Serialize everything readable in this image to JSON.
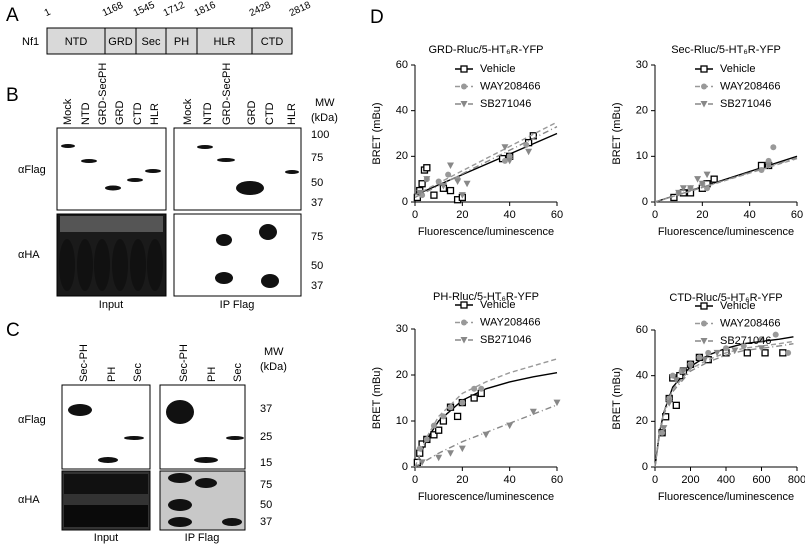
{
  "figure": {
    "panel_a": {
      "label": "A",
      "protein": "Nf1",
      "domains": [
        "NTD",
        "GRD",
        "Sec",
        "PH",
        "HLR",
        "CTD"
      ],
      "positions": [
        "1",
        "1168",
        "1545",
        "1712",
        "1816",
        "2428",
        "2818"
      ]
    },
    "panel_b": {
      "label": "B",
      "lanes": [
        "Mock",
        "NTD",
        "GRD-SecPH",
        "GRD",
        "CTD",
        "HLR"
      ],
      "mw_title": "MW",
      "mw_unit": "(kDa)",
      "rows": [
        "αFlag",
        "αHA"
      ],
      "flag_markers": [
        "100",
        "75",
        "50",
        "37"
      ],
      "ha_markers": [
        "75",
        "50",
        "37"
      ],
      "groups": [
        "Input",
        "IP Flag"
      ]
    },
    "panel_c": {
      "label": "C",
      "lanes": [
        "Sec-PH",
        "PH",
        "Sec"
      ],
      "mw_title": "MW",
      "mw_unit": "(kDa)",
      "rows": [
        "αFlag",
        "αHA"
      ],
      "flag_markers": [
        "37",
        "25",
        "15"
      ],
      "ha_markers": [
        "75",
        "50",
        "37"
      ],
      "groups": [
        "Input",
        "IP Flag"
      ]
    },
    "panel_d": {
      "label": "D"
    }
  },
  "chart_data": [
    {
      "type": "scatter",
      "title": "GRD-Rluc/5-HT₆R-YFP",
      "xlabel": "Fluorescence/luminescence",
      "ylabel": "BRET (mBu)",
      "xlim": [
        0,
        60
      ],
      "xticks": [
        0,
        20,
        40,
        60
      ],
      "ylim": [
        0,
        60
      ],
      "yticks": [
        0,
        20,
        40,
        60
      ],
      "series": [
        {
          "name": "Vehicle",
          "color": "#000000",
          "marker": "square",
          "x": [
            1,
            2,
            3,
            4,
            5,
            8,
            12,
            15,
            18,
            20,
            37,
            40,
            48,
            50
          ],
          "values": [
            2,
            5,
            8,
            14,
            15,
            3,
            6,
            5,
            1,
            2,
            19,
            20,
            26,
            29
          ],
          "fit": {
            "style": "solid",
            "x": [
              0,
              60
            ],
            "values": [
              3,
              30
            ]
          }
        },
        {
          "name": "WAY208466",
          "color": "#999999",
          "marker": "circle",
          "x": [
            3,
            5,
            10,
            14,
            18,
            38,
            40,
            47
          ],
          "values": [
            3,
            10,
            9,
            12,
            10,
            18,
            20,
            25
          ],
          "fit": {
            "style": "dashed",
            "x": [
              0,
              60
            ],
            "values": [
              3,
              35
            ]
          }
        },
        {
          "name": "SB271046",
          "color": "#888888",
          "marker": "triangle",
          "x": [
            2,
            5,
            12,
            15,
            18,
            20,
            22,
            38,
            40,
            48
          ],
          "values": [
            4,
            10,
            7,
            16,
            9,
            3,
            8,
            24,
            18,
            22
          ],
          "fit": {
            "style": "dashdot",
            "x": [
              0,
              60
            ],
            "values": [
              2,
              33
            ]
          }
        }
      ]
    },
    {
      "type": "scatter",
      "title": "Sec-Rluc/5-HT₆R-YFP",
      "xlabel": "Fluorescence/luminescence",
      "ylabel": "BRET (mBu)",
      "xlim": [
        0,
        60
      ],
      "xticks": [
        0,
        20,
        40,
        60
      ],
      "ylim": [
        0,
        30
      ],
      "yticks": [
        0,
        10,
        20,
        30
      ],
      "series": [
        {
          "name": "Vehicle",
          "color": "#000000",
          "marker": "square",
          "x": [
            8,
            12,
            15,
            20,
            22,
            25,
            45,
            48
          ],
          "values": [
            1,
            2,
            2,
            3,
            4,
            5,
            8,
            8
          ],
          "fit": {
            "style": "solid",
            "x": [
              0,
              60
            ],
            "values": [
              0,
              10
            ]
          }
        },
        {
          "name": "WAY208466",
          "color": "#999999",
          "marker": "circle",
          "x": [
            10,
            15,
            20,
            22,
            45,
            48,
            50
          ],
          "values": [
            2,
            3,
            4,
            3,
            7,
            9,
            12
          ],
          "fit": {
            "style": "dashed",
            "x": [
              0,
              60
            ],
            "values": [
              0,
              9.5
            ]
          }
        },
        {
          "name": "SB271046",
          "color": "#888888",
          "marker": "triangle",
          "x": [
            10,
            12,
            15,
            18,
            20,
            22,
            48
          ],
          "values": [
            2,
            3,
            3,
            5,
            4,
            6,
            8
          ],
          "fit": {
            "style": "dashdot",
            "x": [
              0,
              60
            ],
            "values": [
              0,
              9.7
            ]
          }
        }
      ]
    },
    {
      "type": "scatter",
      "title": "PH-Rluc/5-HT₆R-YFP",
      "xlabel": "Fluorescence/luminescence",
      "ylabel": "BRET (mBu)",
      "xlim": [
        0,
        60
      ],
      "xticks": [
        0,
        20,
        40,
        60
      ],
      "ylim": [
        0,
        30
      ],
      "yticks": [
        0,
        10,
        20,
        30
      ],
      "series": [
        {
          "name": "Vehicle",
          "color": "#000000",
          "marker": "square",
          "x": [
            1,
            2,
            3,
            5,
            8,
            10,
            12,
            15,
            18,
            20,
            25,
            28
          ],
          "values": [
            1,
            3,
            5,
            6,
            7,
            8,
            10,
            13,
            11,
            14,
            15,
            16
          ],
          "fit": {
            "style": "solid",
            "x": [
              0,
              5,
              10,
              20,
              30,
              40,
              50,
              60
            ],
            "values": [
              0,
              6,
              10,
              14.5,
              17,
              18.5,
              19.6,
              20.5
            ]
          }
        },
        {
          "name": "WAY208466",
          "color": "#999999",
          "marker": "circle",
          "x": [
            2,
            5,
            8,
            12,
            15,
            20,
            25,
            28
          ],
          "values": [
            4,
            6,
            9,
            11,
            13,
            14,
            17,
            17
          ],
          "fit": {
            "style": "dashed",
            "x": [
              0,
              5,
              10,
              20,
              30,
              40,
              50,
              60
            ],
            "values": [
              0,
              6.5,
              11,
              16,
              18.5,
              20.5,
              22,
              23.5
            ]
          }
        },
        {
          "name": "SB271046",
          "color": "#888888",
          "marker": "triangle",
          "x": [
            3,
            10,
            15,
            20,
            30,
            40,
            50,
            60
          ],
          "values": [
            1,
            2,
            3,
            4,
            7,
            9,
            12,
            14
          ],
          "fit": {
            "style": "dashdot",
            "x": [
              0,
              5,
              10,
              20,
              30,
              40,
              50,
              60
            ],
            "values": [
              0,
              1.5,
              3,
              5.5,
              7.5,
              9.5,
              11.5,
              13.5
            ]
          }
        }
      ]
    },
    {
      "type": "scatter",
      "title": "CTD-Rluc/5-HT₆R-YFP",
      "xlabel": "Fluorescence/luminescence",
      "ylabel": "BRET (mBu)",
      "xlim": [
        0,
        800
      ],
      "xticks": [
        0,
        200,
        400,
        600,
        800
      ],
      "ylim": [
        0,
        60
      ],
      "yticks": [
        0,
        20,
        40,
        60
      ],
      "series": [
        {
          "name": "Vehicle",
          "color": "#000000",
          "marker": "square",
          "x": [
            40,
            60,
            80,
            100,
            120,
            140,
            160,
            200,
            250,
            300,
            400,
            520,
            620,
            720
          ],
          "values": [
            15,
            22,
            30,
            39,
            27,
            40,
            42,
            45,
            48,
            47,
            50,
            50,
            50,
            50
          ],
          "fit": {
            "style": "solid",
            "x": [
              0,
              25,
              50,
              100,
              200,
              300,
              400,
              500,
              600,
              700,
              780
            ],
            "values": [
              0,
              15,
              24,
              35,
              44,
              49,
              52,
              54,
              55,
              56,
              57
            ]
          }
        },
        {
          "name": "WAY208466",
          "color": "#999999",
          "marker": "circle",
          "x": [
            40,
            80,
            100,
            150,
            200,
            250,
            300,
            400,
            500,
            600,
            680,
            750
          ],
          "values": [
            15,
            30,
            40,
            42,
            45,
            48,
            50,
            52,
            53,
            56,
            58,
            50
          ],
          "fit": {
            "style": "dashed",
            "x": [
              0,
              25,
              50,
              100,
              200,
              300,
              400,
              500,
              600,
              700,
              780
            ],
            "values": [
              0,
              15,
              24,
              34,
              43,
              47,
              50,
              52,
              53,
              54,
              55
            ]
          }
        },
        {
          "name": "SB271046",
          "color": "#888888",
          "marker": "triangle",
          "x": [
            50,
            80,
            120,
            160,
            200,
            280,
            350,
            450,
            600
          ],
          "values": [
            17,
            28,
            38,
            42,
            44,
            47,
            50,
            51,
            52
          ],
          "fit": {
            "style": "dashdot",
            "x": [
              0,
              25,
              50,
              100,
              200,
              300,
              400,
              500,
              600,
              700,
              780
            ],
            "values": [
              0,
              14,
              23,
              33,
              42,
              46,
              49,
              51,
              52,
              53,
              54
            ]
          }
        }
      ]
    }
  ]
}
